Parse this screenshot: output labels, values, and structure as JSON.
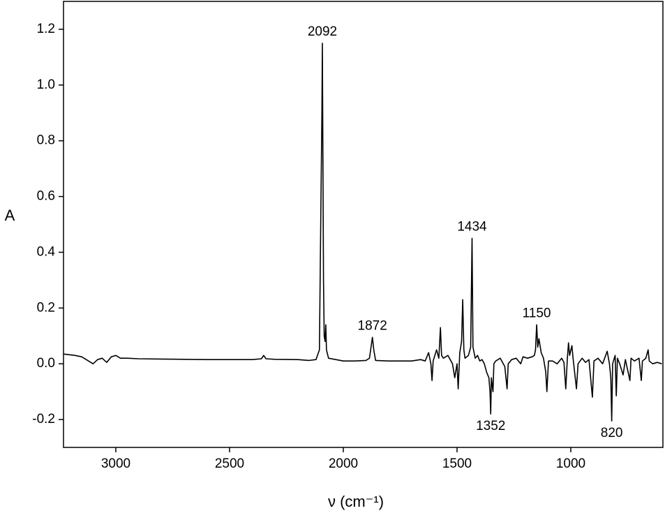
{
  "chart_data": {
    "type": "line",
    "y_label": "A",
    "x_label": "ν (cm⁻¹)",
    "xlim": [
      3230,
      595
    ],
    "ylim": [
      -0.3,
      1.3
    ],
    "xticks": [
      3000,
      2500,
      2000,
      1500,
      1000
    ],
    "yticks": [
      -0.2,
      {
        "value": 0,
        "label": "0.0"
      },
      0.2,
      0.4,
      0.6,
      0.8,
      {
        "value": 1,
        "label": "1.0"
      },
      1.2
    ],
    "color": "#000000",
    "x": [
      3230,
      3180,
      3150,
      3120,
      3100,
      3080,
      3060,
      3040,
      3020,
      3000,
      2980,
      2950,
      2900,
      2800,
      2700,
      2600,
      2500,
      2400,
      2360,
      2350,
      2340,
      2300,
      2200,
      2150,
      2120,
      2105,
      2098,
      2094,
      2092,
      2090,
      2087,
      2084,
      2080,
      2077,
      2074,
      2065,
      2000,
      1950,
      1900,
      1885,
      1878,
      1872,
      1866,
      1858,
      1800,
      1750,
      1700,
      1660,
      1640,
      1625,
      1615,
      1610,
      1605,
      1590,
      1580,
      1573,
      1568,
      1560,
      1540,
      1520,
      1510,
      1500,
      1495,
      1488,
      1480,
      1475,
      1470,
      1465,
      1450,
      1440,
      1434,
      1430,
      1420,
      1410,
      1400,
      1390,
      1380,
      1370,
      1360,
      1355,
      1352,
      1349,
      1342,
      1338,
      1330,
      1310,
      1290,
      1280,
      1275,
      1260,
      1240,
      1220,
      1210,
      1190,
      1170,
      1160,
      1155,
      1150,
      1145,
      1140,
      1130,
      1120,
      1110,
      1105,
      1098,
      1080,
      1060,
      1040,
      1030,
      1022,
      1015,
      1010,
      1005,
      995,
      990,
      975,
      968,
      950,
      935,
      920,
      905,
      898,
      880,
      860,
      840,
      830,
      824,
      820,
      816,
      805,
      800,
      795,
      785,
      770,
      760,
      740,
      735,
      720,
      700,
      690,
      685,
      670,
      660,
      655,
      640,
      620,
      600
    ],
    "values": [
      0.035,
      0.03,
      0.025,
      0.01,
      0.0,
      0.015,
      0.02,
      0.005,
      0.025,
      0.03,
      0.02,
      0.02,
      0.018,
      0.017,
      0.016,
      0.015,
      0.015,
      0.015,
      0.018,
      0.03,
      0.018,
      0.016,
      0.015,
      0.012,
      0.015,
      0.05,
      0.6,
      0.9,
      1.15,
      0.8,
      0.3,
      0.1,
      0.08,
      0.14,
      0.05,
      0.02,
      0.01,
      0.01,
      0.012,
      0.02,
      0.06,
      0.095,
      0.05,
      0.012,
      0.01,
      0.01,
      0.01,
      0.015,
      0.01,
      0.04,
      0.0,
      -0.06,
      0.01,
      0.05,
      0.02,
      0.13,
      0.03,
      0.02,
      0.03,
      0.0,
      -0.05,
      0.0,
      -0.09,
      0.04,
      0.08,
      0.23,
      0.05,
      0.02,
      0.03,
      0.06,
      0.45,
      0.06,
      0.02,
      0.03,
      0.01,
      0.015,
      0.0,
      -0.03,
      -0.05,
      -0.1,
      -0.18,
      -0.05,
      -0.1,
      0.0,
      0.01,
      0.02,
      -0.01,
      -0.09,
      0.0,
      0.015,
      0.02,
      0.0,
      0.025,
      0.02,
      0.025,
      0.03,
      0.05,
      0.14,
      0.06,
      0.09,
      0.04,
      0.02,
      -0.03,
      -0.1,
      0.01,
      0.01,
      0.0,
      0.02,
      0.005,
      -0.09,
      0.02,
      0.075,
      0.03,
      0.065,
      0.02,
      -0.09,
      0.0,
      0.02,
      0.005,
      0.015,
      -0.12,
      0.01,
      0.02,
      0.0,
      0.045,
      0.0,
      -0.05,
      -0.205,
      0.0,
      0.03,
      -0.115,
      0.02,
      0.0,
      -0.04,
      0.015,
      -0.06,
      0.02,
      0.01,
      0.02,
      -0.06,
      0.01,
      0.02,
      0.05,
      0.01,
      0.0,
      0.005,
      0.0
    ],
    "peaks": [
      {
        "x": 2092,
        "y": 1.15
      },
      {
        "x": 1872,
        "y": 0.095
      },
      {
        "x": 1434,
        "y": 0.45
      },
      {
        "x": 1150,
        "y": 0.14
      },
      {
        "x": 1352,
        "y": -0.18
      },
      {
        "x": 820,
        "y": -0.205
      }
    ]
  }
}
